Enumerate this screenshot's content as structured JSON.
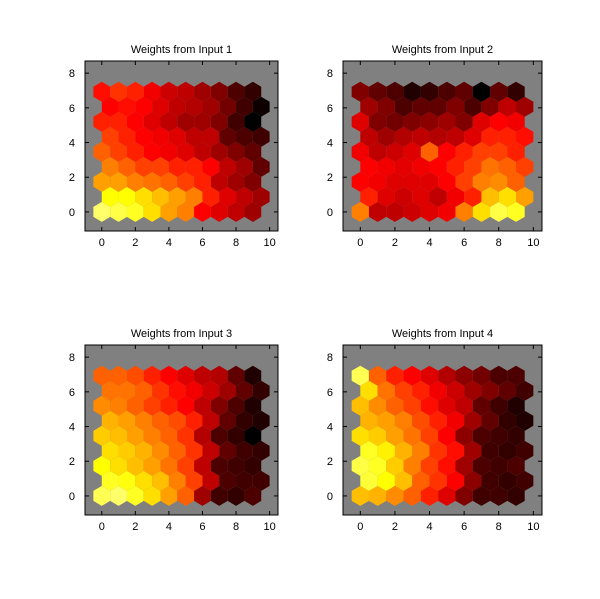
{
  "chart_data": [
    {
      "type": "heatmap",
      "title": "Weights from Input 1",
      "xticks": [
        0,
        2,
        4,
        6,
        8,
        10
      ],
      "yticks": [
        0,
        2,
        4,
        6,
        8
      ],
      "xlim": [
        -1,
        10.5
      ],
      "ylim": [
        -1.1,
        8.7
      ],
      "grid": false,
      "rows": [
        [
          0.95,
          0.9,
          0.85,
          0.75,
          0.65,
          0.6,
          0.4,
          0.35,
          0.3,
          0.25
        ],
        [
          0.8,
          0.8,
          0.75,
          0.7,
          0.65,
          0.6,
          0.45,
          0.35,
          0.3,
          0.25
        ],
        [
          0.65,
          0.65,
          0.6,
          0.58,
          0.55,
          0.5,
          0.45,
          0.3,
          0.25,
          0.2
        ],
        [
          0.6,
          0.55,
          0.5,
          0.5,
          0.45,
          0.45,
          0.4,
          0.3,
          0.25,
          0.15
        ],
        [
          0.55,
          0.5,
          0.45,
          0.4,
          0.38,
          0.35,
          0.3,
          0.25,
          0.2,
          0.15
        ],
        [
          0.5,
          0.45,
          0.4,
          0.38,
          0.35,
          0.3,
          0.3,
          0.15,
          0.12,
          0.1
        ],
        [
          0.45,
          0.45,
          0.4,
          0.35,
          0.3,
          0.25,
          0.25,
          0.2,
          0.1,
          0.0
        ],
        [
          0.4,
          0.42,
          0.4,
          0.35,
          0.3,
          0.28,
          0.25,
          0.18,
          0.1,
          0.02
        ],
        [
          0.42,
          0.48,
          0.45,
          0.38,
          0.32,
          0.3,
          0.25,
          0.2,
          0.12,
          0.08
        ]
      ]
    },
    {
      "type": "heatmap",
      "title": "Weights from Input 2",
      "xticks": [
        0,
        2,
        4,
        6,
        8,
        10
      ],
      "yticks": [
        0,
        2,
        4,
        6,
        8
      ],
      "xlim": [
        -1,
        10.5
      ],
      "ylim": [
        -1.1,
        8.7
      ],
      "grid": false,
      "rows": [
        [
          0.6,
          0.3,
          0.3,
          0.32,
          0.35,
          0.38,
          0.6,
          0.75,
          0.9,
          0.85
        ],
        [
          0.45,
          0.35,
          0.32,
          0.35,
          0.3,
          0.38,
          0.45,
          0.7,
          0.75,
          0.65
        ],
        [
          0.4,
          0.38,
          0.35,
          0.35,
          0.35,
          0.4,
          0.5,
          0.6,
          0.62,
          0.55
        ],
        [
          0.4,
          0.38,
          0.36,
          0.38,
          0.4,
          0.45,
          0.5,
          0.58,
          0.55,
          0.5
        ],
        [
          0.38,
          0.3,
          0.32,
          0.35,
          0.55,
          0.4,
          0.45,
          0.5,
          0.5,
          0.45
        ],
        [
          0.3,
          0.25,
          0.28,
          0.3,
          0.28,
          0.3,
          0.35,
          0.45,
          0.45,
          0.42
        ],
        [
          0.35,
          0.2,
          0.18,
          0.2,
          0.22,
          0.25,
          0.2,
          0.35,
          0.4,
          0.38
        ],
        [
          0.25,
          0.2,
          0.12,
          0.15,
          0.15,
          0.2,
          0.12,
          0.2,
          0.3,
          0.25
        ],
        [
          0.2,
          0.15,
          0.12,
          0.05,
          0.08,
          0.12,
          0.15,
          0.0,
          0.15,
          0.08
        ]
      ]
    },
    {
      "type": "heatmap",
      "title": "Weights from Input 3",
      "xticks": [
        0,
        2,
        4,
        6,
        8,
        10
      ],
      "yticks": [
        0,
        2,
        4,
        6,
        8
      ],
      "xlim": [
        -1,
        10.5
      ],
      "ylim": [
        -1.1,
        8.7
      ],
      "grid": false,
      "rows": [
        [
          0.92,
          0.95,
          0.85,
          0.75,
          0.65,
          0.55,
          0.25,
          0.1,
          0.08,
          0.12
        ],
        [
          0.85,
          0.82,
          0.75,
          0.7,
          0.6,
          0.5,
          0.3,
          0.12,
          0.1,
          0.1
        ],
        [
          0.8,
          0.75,
          0.7,
          0.65,
          0.58,
          0.5,
          0.3,
          0.12,
          0.1,
          0.08
        ],
        [
          0.75,
          0.72,
          0.68,
          0.62,
          0.55,
          0.48,
          0.3,
          0.15,
          0.1,
          0.08
        ],
        [
          0.72,
          0.7,
          0.65,
          0.6,
          0.55,
          0.48,
          0.28,
          0.12,
          0.08,
          0.0
        ],
        [
          0.68,
          0.65,
          0.6,
          0.55,
          0.52,
          0.45,
          0.3,
          0.15,
          0.08,
          0.05
        ],
        [
          0.62,
          0.6,
          0.55,
          0.5,
          0.45,
          0.4,
          0.3,
          0.2,
          0.12,
          0.05
        ],
        [
          0.58,
          0.58,
          0.55,
          0.48,
          0.42,
          0.38,
          0.32,
          0.25,
          0.15,
          0.08
        ],
        [
          0.55,
          0.55,
          0.52,
          0.45,
          0.4,
          0.35,
          0.3,
          0.28,
          0.15,
          0.05
        ]
      ]
    },
    {
      "type": "heatmap",
      "title": "Weights from Input 4",
      "xticks": [
        0,
        2,
        4,
        6,
        8,
        10
      ],
      "yticks": [
        0,
        2,
        4,
        6,
        8
      ],
      "xlim": [
        -1,
        10.5
      ],
      "ylim": [
        -1.1,
        8.7
      ],
      "grid": false,
      "rows": [
        [
          0.7,
          0.68,
          0.62,
          0.55,
          0.45,
          0.35,
          0.2,
          0.1,
          0.1,
          0.08
        ],
        [
          0.88,
          0.8,
          0.7,
          0.55,
          0.48,
          0.4,
          0.22,
          0.1,
          0.08,
          0.1
        ],
        [
          0.9,
          0.85,
          0.72,
          0.6,
          0.5,
          0.42,
          0.25,
          0.12,
          0.1,
          0.12
        ],
        [
          0.85,
          0.78,
          0.68,
          0.6,
          0.48,
          0.42,
          0.25,
          0.1,
          0.08,
          0.1
        ],
        [
          0.75,
          0.72,
          0.65,
          0.58,
          0.5,
          0.4,
          0.22,
          0.12,
          0.1,
          0.08
        ],
        [
          0.68,
          0.65,
          0.6,
          0.52,
          0.45,
          0.38,
          0.25,
          0.15,
          0.08,
          0.05
        ],
        [
          0.7,
          0.62,
          0.55,
          0.5,
          0.42,
          0.35,
          0.3,
          0.15,
          0.1,
          0.05
        ],
        [
          0.75,
          0.58,
          0.5,
          0.45,
          0.38,
          0.32,
          0.25,
          0.2,
          0.15,
          0.1
        ],
        [
          0.92,
          0.55,
          0.45,
          0.4,
          0.35,
          0.28,
          0.22,
          0.18,
          0.12,
          0.12
        ]
      ]
    }
  ]
}
